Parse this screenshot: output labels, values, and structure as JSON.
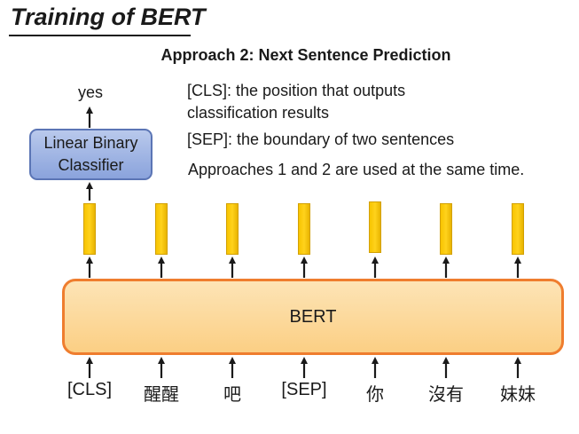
{
  "slide": {
    "title": "Training of BERT",
    "subtitle": "Approach 2: Next Sentence Prediction"
  },
  "notes": {
    "cls_line1": "[CLS]: the position that outputs",
    "cls_line2": "classification results",
    "sep_line": "[SEP]: the boundary of two sentences",
    "approaches_line": "Approaches 1 and 2 are used at the same time."
  },
  "classifier": {
    "label_line1": "Linear Binary",
    "label_line2": "Classifier",
    "output": "yes"
  },
  "model": {
    "label": "BERT"
  },
  "tokens": [
    "[CLS]",
    "醒醒",
    "吧",
    "[SEP]",
    "你",
    "沒有",
    "妹妹"
  ],
  "colors": {
    "classifier_fill": "#9fb4e4",
    "bert_fill": "#fcd9a0",
    "bert_border": "#ef7d2e",
    "vector_fill": "#ffcc00"
  }
}
